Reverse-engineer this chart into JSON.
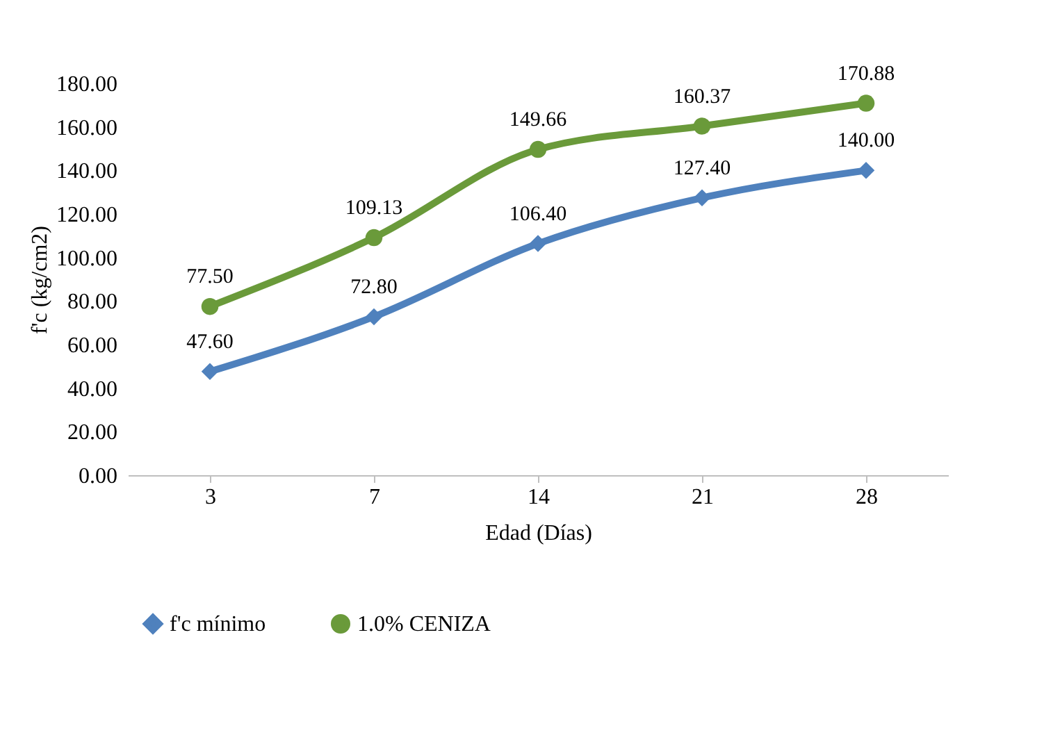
{
  "chart_data": {
    "type": "line",
    "xlabel": "Edad (Días)",
    "ylabel": "f'c (kg/cm2)",
    "categories": [
      "3",
      "7",
      "14",
      "21",
      "28"
    ],
    "ylim": [
      0,
      180
    ],
    "yticks": [
      {
        "value": 0,
        "label": "0.00"
      },
      {
        "value": 20,
        "label": "20.00"
      },
      {
        "value": 40,
        "label": "40.00"
      },
      {
        "value": 60,
        "label": "60.00"
      },
      {
        "value": 80,
        "label": "80.00"
      },
      {
        "value": 100,
        "label": "100.00"
      },
      {
        "value": 120,
        "label": "120.00"
      },
      {
        "value": 140,
        "label": "140.00"
      },
      {
        "value": 160,
        "label": "160.00"
      },
      {
        "value": 180,
        "label": "180.00"
      }
    ],
    "grid": false,
    "legend": "bottom",
    "line_style": "solid",
    "series": [
      {
        "name": "f'c mínimo",
        "color": "#4f81bd",
        "marker": "diamond",
        "values": [
          47.6,
          72.8,
          106.4,
          127.4,
          140.0
        ],
        "value_labels": [
          "47.60",
          "72.80",
          "106.40",
          "127.40",
          "140.00"
        ]
      },
      {
        "name": "1.0% CENIZA",
        "color": "#6a9a3a",
        "marker": "circle",
        "values": [
          77.5,
          109.13,
          149.66,
          160.37,
          170.88
        ],
        "value_labels": [
          "77.50",
          "109.13",
          "149.66",
          "160.37",
          "170.88"
        ]
      }
    ]
  }
}
